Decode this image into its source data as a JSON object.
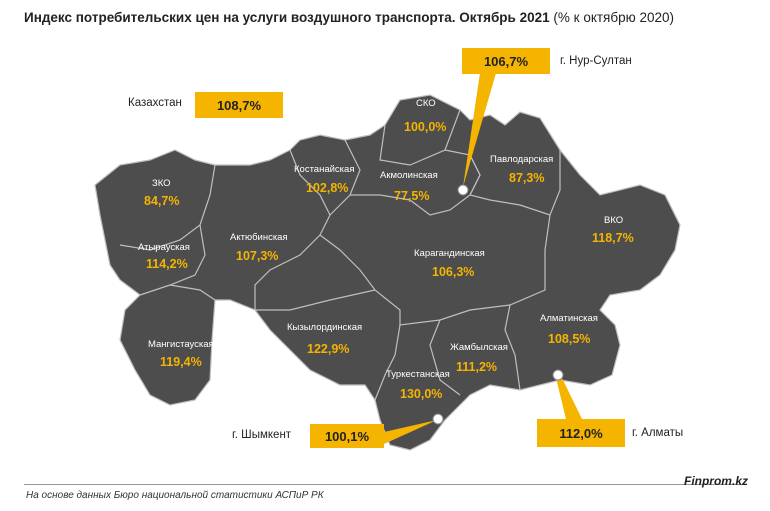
{
  "title": {
    "bold": "Индекс потребительских цен на услуги воздушного транспорта. Октябрь 2021",
    "normal": "(% к октябрю 2020)"
  },
  "kazakhstan": {
    "label": "Казахстан",
    "value": "108,7%"
  },
  "cities": {
    "nur_sultan": {
      "label": "г. Нур-Султан",
      "value": "106,7%"
    },
    "shymkent": {
      "label": "г. Шымкент",
      "value": "100,1%"
    },
    "almaty": {
      "label": "г. Алматы",
      "value": "112,0%"
    }
  },
  "regions": {
    "zko": {
      "name": "ЗКО",
      "value": "84,7%"
    },
    "atyrau": {
      "name": "Атырауская",
      "value": "114,2%"
    },
    "mangystau": {
      "name": "Мангистауская",
      "value": "119,4%"
    },
    "aktobe": {
      "name": "Актюбинская",
      "value": "107,3%"
    },
    "kostanay": {
      "name": "Костанайская",
      "value": "102,8%"
    },
    "sko": {
      "name": "СКО",
      "value": "100,0%"
    },
    "akmola": {
      "name": "Акмолинская",
      "value": "77,5%"
    },
    "pavlodar": {
      "name": "Павлодарская",
      "value": "87,3%"
    },
    "vko": {
      "name": "ВКО",
      "value": "118,7%"
    },
    "karaganda": {
      "name": "Карагандинская",
      "value": "106,3%"
    },
    "kyzylorda": {
      "name": "Кызылординская",
      "value": "122,9%"
    },
    "zhambyl": {
      "name": "Жамбылская",
      "value": "111,2%"
    },
    "almaty_reg": {
      "name": "Алматинская",
      "value": "108,5%"
    },
    "turkestan": {
      "name": "Туркестанская",
      "value": "130,0%"
    }
  },
  "colors": {
    "map_fill": "#4d4d4d",
    "accent": "#f4b400",
    "border": "#bfbfbf"
  },
  "footer": {
    "source": "На основе данных Бюро национальной статистики АСПиР РК",
    "brand": "Finprom.kz"
  }
}
